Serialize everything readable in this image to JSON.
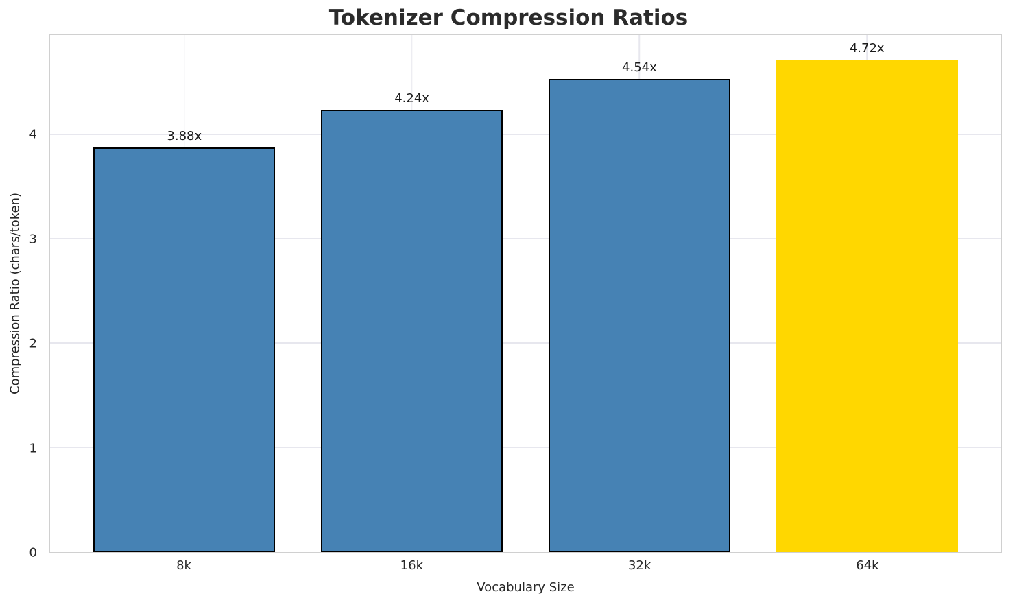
{
  "chart_data": {
    "type": "bar",
    "title": "Tokenizer Compression Ratios",
    "xlabel": "Vocabulary Size",
    "ylabel": "Compression Ratio (chars/token)",
    "categories": [
      "8k",
      "16k",
      "32k",
      "64k"
    ],
    "values": [
      3.88,
      4.24,
      4.54,
      4.72
    ],
    "value_labels": [
      "3.88x",
      "4.24x",
      "4.54x",
      "4.72x"
    ],
    "bar_colors": [
      "#4682B4",
      "#4682B4",
      "#4682B4",
      "#FFD700"
    ],
    "bar_edge_colors": [
      "#000000",
      "#000000",
      "#000000",
      "#FFD700"
    ],
    "ylim": [
      0,
      4.96
    ],
    "yticks": [
      0,
      1,
      2,
      3,
      4
    ],
    "grid": true,
    "grid_color": "#e7e7ee",
    "spine_color": "#d0d0d0",
    "text_color": "#262626",
    "background": "#ffffff",
    "legend": "none"
  }
}
